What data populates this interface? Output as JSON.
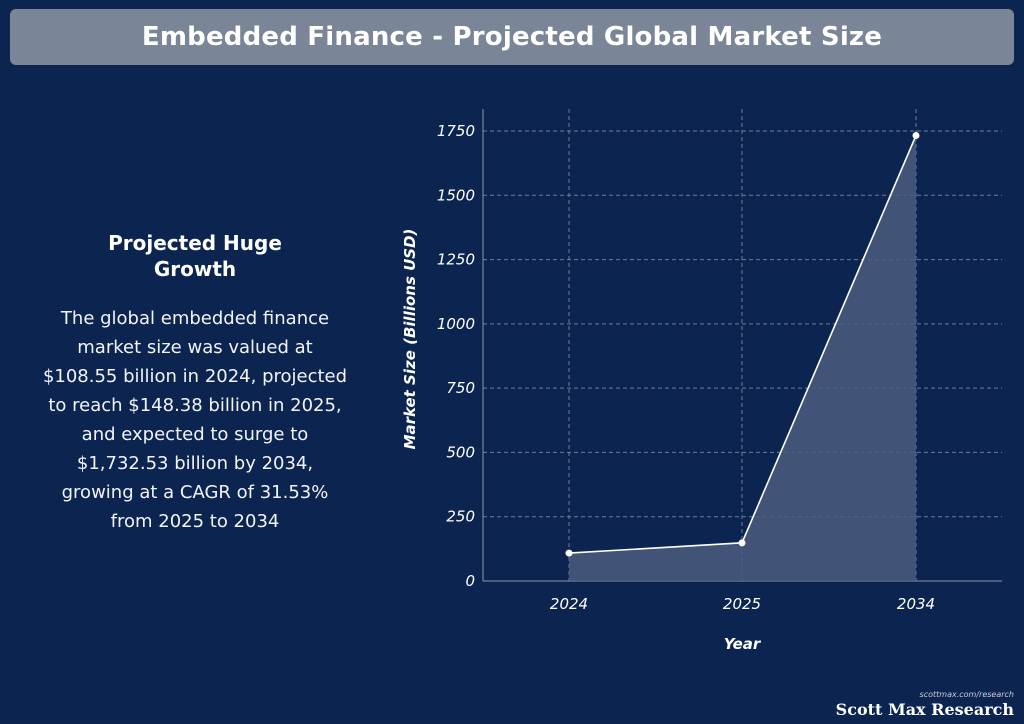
{
  "header": {
    "title": "Embedded Finance - Projected Global Market Size"
  },
  "summary": {
    "heading": "Projected Huge Growth",
    "body": "The global embedded finance market size was valued at $108.55 billion in 2024, projected to reach $148.38 billion in 2025, and expected to surge to $1,732.53 billion by 2034, growing at a CAGR of 31.53% from 2025 to 2034"
  },
  "chart_data": {
    "type": "area",
    "categories": [
      "2024",
      "2025",
      "2034"
    ],
    "values": [
      108.55,
      148.38,
      1732.53
    ],
    "title": "",
    "xlabel": "Year",
    "ylabel": "Market Size (Billions USD)",
    "ylim": [
      0,
      1750
    ],
    "yticks": [
      0,
      250,
      500,
      750,
      1000,
      1250,
      1500,
      1750
    ],
    "grid": true,
    "colors": {
      "line": "#ffffff",
      "fill": "#4b5d7e",
      "grid": "#6d7c96",
      "axis": "#8a97ad"
    }
  },
  "brand": {
    "url": "scottmax.com/research",
    "name": "Scott Max Research"
  }
}
